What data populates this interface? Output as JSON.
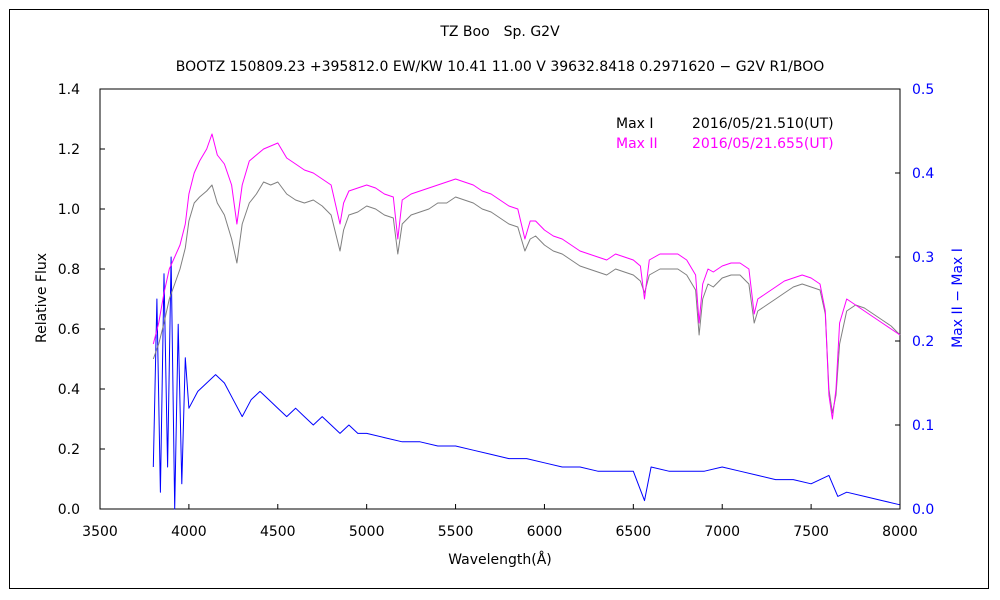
{
  "chart_data": {
    "type": "line",
    "title": "TZ Boo　Sp. G2V",
    "subtitle": "BOOTZ 150809.23 +395812.0 EW/KW 10.41 11.00 V 39632.8418 0.2971620 − G2V R1/BOO",
    "xlabel": "Wavelength(Å)",
    "ylabel": "Relative Flux",
    "y2label": "Max II − Max I",
    "xlim": [
      3500,
      8000
    ],
    "ylim": [
      0,
      1.4
    ],
    "y2lim": [
      0,
      0.5
    ],
    "xticks": [
      3500,
      4000,
      4500,
      5000,
      5500,
      6000,
      6500,
      7000,
      7500,
      8000
    ],
    "yticks": [
      "0.0",
      "0.2",
      "0.4",
      "0.6",
      "0.8",
      "1.0",
      "1.2",
      "1.4"
    ],
    "y2ticks": [
      "0.0",
      "0.1",
      "0.2",
      "0.3",
      "0.4",
      "0.5"
    ],
    "grid": false,
    "legend": "top-right",
    "series": [
      {
        "name": "Max I",
        "axis": "left",
        "color": "#808080",
        "note": "2016/05/21.510(UT)",
        "x": [
          3800,
          3830,
          3860,
          3890,
          3920,
          3950,
          3980,
          4000,
          4030,
          4060,
          4100,
          4130,
          4160,
          4200,
          4240,
          4270,
          4300,
          4340,
          4380,
          4420,
          4460,
          4500,
          4550,
          4600,
          4650,
          4700,
          4750,
          4800,
          4850,
          4870,
          4900,
          4950,
          5000,
          5050,
          5100,
          5150,
          5175,
          5200,
          5250,
          5300,
          5350,
          5400,
          5450,
          5500,
          5550,
          5600,
          5650,
          5700,
          5750,
          5800,
          5850,
          5890,
          5920,
          5950,
          6000,
          6050,
          6100,
          6150,
          6200,
          6250,
          6300,
          6350,
          6400,
          6450,
          6500,
          6540,
          6563,
          6590,
          6650,
          6700,
          6750,
          6800,
          6850,
          6870,
          6890,
          6920,
          6950,
          7000,
          7050,
          7100,
          7150,
          7180,
          7200,
          7250,
          7300,
          7350,
          7400,
          7450,
          7500,
          7550,
          7580,
          7600,
          7620,
          7640,
          7660,
          7700,
          7750,
          7800,
          7850,
          7900,
          7950,
          8000
        ],
        "y": [
          0.5,
          0.55,
          0.62,
          0.7,
          0.75,
          0.8,
          0.87,
          0.96,
          1.02,
          1.04,
          1.06,
          1.08,
          1.02,
          0.98,
          0.9,
          0.82,
          0.95,
          1.02,
          1.05,
          1.09,
          1.08,
          1.09,
          1.05,
          1.03,
          1.02,
          1.03,
          1.01,
          0.98,
          0.86,
          0.93,
          0.98,
          0.99,
          1.01,
          1.0,
          0.98,
          0.97,
          0.85,
          0.95,
          0.98,
          0.99,
          1.0,
          1.02,
          1.02,
          1.04,
          1.03,
          1.02,
          1.0,
          0.99,
          0.97,
          0.95,
          0.94,
          0.86,
          0.9,
          0.91,
          0.88,
          0.86,
          0.85,
          0.83,
          0.81,
          0.8,
          0.79,
          0.78,
          0.8,
          0.79,
          0.78,
          0.76,
          0.72,
          0.78,
          0.8,
          0.8,
          0.8,
          0.78,
          0.73,
          0.58,
          0.7,
          0.75,
          0.74,
          0.77,
          0.78,
          0.78,
          0.75,
          0.62,
          0.66,
          0.68,
          0.7,
          0.72,
          0.74,
          0.75,
          0.74,
          0.73,
          0.65,
          0.4,
          0.32,
          0.38,
          0.55,
          0.66,
          0.68,
          0.67,
          0.65,
          0.63,
          0.61,
          0.58
        ]
      },
      {
        "name": "Max II",
        "axis": "left",
        "color": "#ff00ff",
        "note": "2016/05/21.655(UT)",
        "x": [
          3800,
          3830,
          3860,
          3890,
          3920,
          3950,
          3980,
          4000,
          4030,
          4060,
          4100,
          4130,
          4160,
          4200,
          4240,
          4270,
          4300,
          4340,
          4380,
          4420,
          4460,
          4500,
          4550,
          4600,
          4650,
          4700,
          4750,
          4800,
          4850,
          4870,
          4900,
          4950,
          5000,
          5050,
          5100,
          5150,
          5175,
          5200,
          5250,
          5300,
          5350,
          5400,
          5450,
          5500,
          5550,
          5600,
          5650,
          5700,
          5750,
          5800,
          5850,
          5890,
          5920,
          5950,
          6000,
          6050,
          6100,
          6150,
          6200,
          6250,
          6300,
          6350,
          6400,
          6450,
          6500,
          6540,
          6563,
          6590,
          6650,
          6700,
          6750,
          6800,
          6850,
          6870,
          6890,
          6920,
          6950,
          7000,
          7050,
          7100,
          7150,
          7180,
          7200,
          7250,
          7300,
          7350,
          7400,
          7450,
          7500,
          7550,
          7580,
          7600,
          7620,
          7640,
          7660,
          7700,
          7750,
          7800,
          7850,
          7900,
          7950,
          8000
        ],
        "y": [
          0.55,
          0.62,
          0.72,
          0.8,
          0.84,
          0.88,
          0.95,
          1.05,
          1.12,
          1.16,
          1.2,
          1.25,
          1.18,
          1.15,
          1.08,
          0.95,
          1.08,
          1.16,
          1.18,
          1.2,
          1.21,
          1.22,
          1.17,
          1.15,
          1.13,
          1.12,
          1.1,
          1.08,
          0.95,
          1.02,
          1.06,
          1.07,
          1.08,
          1.07,
          1.05,
          1.04,
          0.9,
          1.03,
          1.05,
          1.06,
          1.07,
          1.08,
          1.09,
          1.1,
          1.09,
          1.08,
          1.06,
          1.05,
          1.03,
          1.01,
          1.0,
          0.9,
          0.96,
          0.96,
          0.93,
          0.91,
          0.9,
          0.88,
          0.86,
          0.85,
          0.84,
          0.83,
          0.85,
          0.84,
          0.83,
          0.81,
          0.7,
          0.83,
          0.85,
          0.85,
          0.85,
          0.83,
          0.78,
          0.62,
          0.75,
          0.8,
          0.79,
          0.81,
          0.82,
          0.82,
          0.8,
          0.65,
          0.7,
          0.72,
          0.74,
          0.76,
          0.77,
          0.78,
          0.77,
          0.75,
          0.66,
          0.38,
          0.3,
          0.4,
          0.62,
          0.7,
          0.68,
          0.66,
          0.64,
          0.62,
          0.6,
          0.58
        ]
      },
      {
        "name": "Max II − Max I",
        "axis": "right",
        "color": "#0000ff",
        "x": [
          3800,
          3820,
          3840,
          3860,
          3880,
          3900,
          3920,
          3940,
          3960,
          3980,
          4000,
          4050,
          4100,
          4150,
          4200,
          4250,
          4300,
          4350,
          4400,
          4450,
          4500,
          4550,
          4600,
          4650,
          4700,
          4750,
          4800,
          4850,
          4900,
          4950,
          5000,
          5100,
          5200,
          5300,
          5400,
          5500,
          5600,
          5700,
          5800,
          5900,
          6000,
          6100,
          6200,
          6300,
          6400,
          6500,
          6563,
          6600,
          6700,
          6800,
          6900,
          7000,
          7100,
          7200,
          7300,
          7400,
          7500,
          7600,
          7650,
          7700,
          7800,
          7900,
          8000
        ],
        "y": [
          0.05,
          0.25,
          0.02,
          0.28,
          0.05,
          0.3,
          0.0,
          0.22,
          0.03,
          0.18,
          0.12,
          0.14,
          0.15,
          0.16,
          0.15,
          0.13,
          0.11,
          0.13,
          0.14,
          0.13,
          0.12,
          0.11,
          0.12,
          0.11,
          0.1,
          0.11,
          0.1,
          0.09,
          0.1,
          0.09,
          0.09,
          0.085,
          0.08,
          0.08,
          0.075,
          0.075,
          0.07,
          0.065,
          0.06,
          0.06,
          0.055,
          0.05,
          0.05,
          0.045,
          0.045,
          0.045,
          0.01,
          0.05,
          0.045,
          0.045,
          0.045,
          0.05,
          0.045,
          0.04,
          0.035,
          0.035,
          0.03,
          0.04,
          0.015,
          0.02,
          0.015,
          0.01,
          0.005
        ]
      }
    ]
  }
}
